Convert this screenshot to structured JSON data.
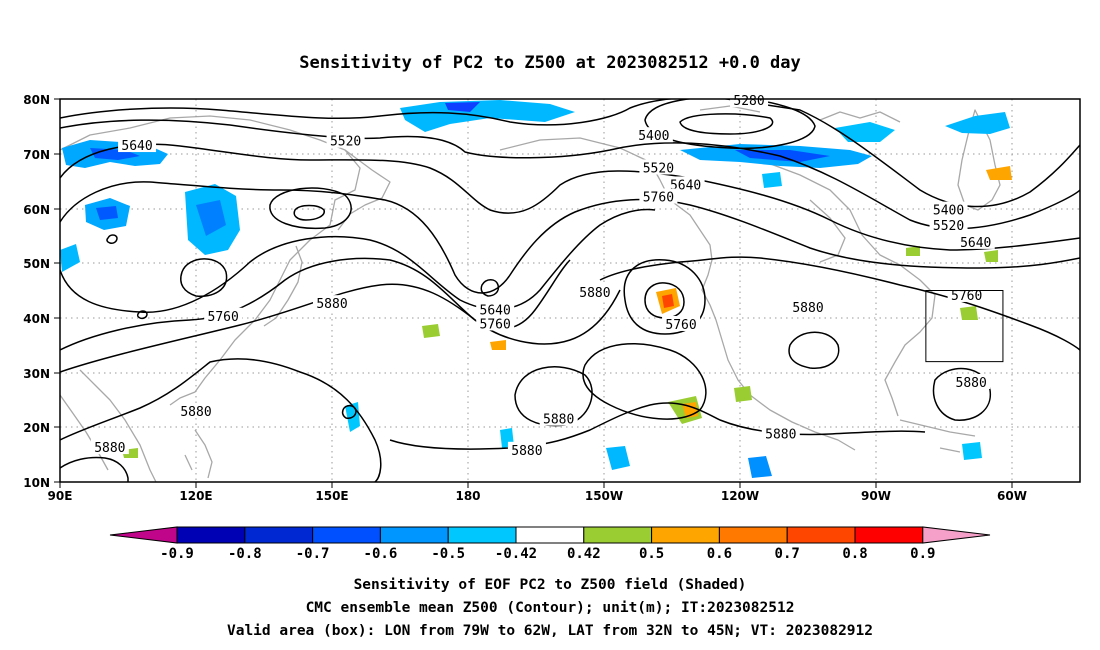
{
  "title": "Sensitivity of PC2 to Z500 at 2023082512 +0.0 day",
  "lat_ticks": [
    "80N",
    "70N",
    "60N",
    "50N",
    "40N",
    "30N",
    "20N",
    "10N"
  ],
  "lon_ticks": [
    "90E",
    "120E",
    "150E",
    "180",
    "150W",
    "120W",
    "90W",
    "60W"
  ],
  "contour_labels": [
    {
      "text": "5640",
      "lon": 107,
      "lat": 71.4
    },
    {
      "text": "5520",
      "lon": 153,
      "lat": 72.2
    },
    {
      "text": "5400",
      "lon": 221,
      "lat": 73.2
    },
    {
      "text": "5280",
      "lon": 242,
      "lat": 79.6
    },
    {
      "text": "5520",
      "lon": 222,
      "lat": 67.3
    },
    {
      "text": "5640",
      "lon": 228,
      "lat": 64.2
    },
    {
      "text": "5760",
      "lon": 222,
      "lat": 62.0
    },
    {
      "text": "5880",
      "lon": 208,
      "lat": 44.5
    },
    {
      "text": "5640",
      "lon": 186,
      "lat": 41.3
    },
    {
      "text": "5760",
      "lon": 186,
      "lat": 38.8
    },
    {
      "text": "5880",
      "lon": 150,
      "lat": 42.5
    },
    {
      "text": "5760",
      "lon": 126,
      "lat": 40.2
    },
    {
      "text": "5760",
      "lon": 227,
      "lat": 38.7
    },
    {
      "text": "5880",
      "lon": 255,
      "lat": 41.8
    },
    {
      "text": "5400",
      "lon": 286,
      "lat": 59.6
    },
    {
      "text": "5520",
      "lon": 286,
      "lat": 56.8
    },
    {
      "text": "5640",
      "lon": 292,
      "lat": 53.7
    },
    {
      "text": "5760",
      "lon": 290,
      "lat": 44.0
    },
    {
      "text": "5880",
      "lon": 291,
      "lat": 28.1
    },
    {
      "text": "5880",
      "lon": 120,
      "lat": 22.8
    },
    {
      "text": "5880",
      "lon": 101,
      "lat": 16.2
    },
    {
      "text": "5880",
      "lon": 200,
      "lat": 21.4
    },
    {
      "text": "5880",
      "lon": 193,
      "lat": 15.7
    },
    {
      "text": "5880",
      "lon": 249,
      "lat": 18.7
    }
  ],
  "colorbar": {
    "labels": [
      "-0.9",
      "-0.8",
      "-0.7",
      "-0.6",
      "-0.5",
      "-0.42",
      "0.42",
      "0.5",
      "0.6",
      "0.7",
      "0.8",
      "0.9"
    ],
    "colors": [
      "#0000b4",
      "#0028d2",
      "#0050ff",
      "#0096ff",
      "#00c8ff",
      "#ffffff",
      "#9acd32",
      "#ffa500",
      "#ff7800",
      "#ff4600",
      "#ff0000"
    ],
    "low_color": "#c0058a",
    "high_color": "#f5a0c8"
  },
  "caption": [
    "Sensitivity of EOF PC2 to Z500 field (Shaded)",
    "CMC ensemble mean Z500 (Contour); unit(m); IT:2023082512",
    "Valid area (box): LON from 79W to 62W, LAT from 32N to 45N; VT: 2023082912"
  ],
  "valid_box": {
    "lon_min": 281,
    "lon_max": 298,
    "lat_min": 32,
    "lat_max": 45
  }
}
